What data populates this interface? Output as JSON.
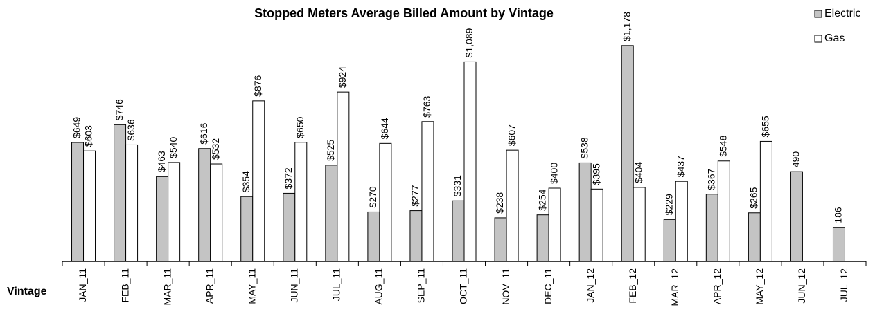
{
  "chart_data": {
    "type": "bar",
    "title": "Stopped Meters Average Billed Amount by Vintage",
    "x_label": "Vintage",
    "categories": [
      "JAN_11",
      "FEB_11",
      "MAR_11",
      "APR_11",
      "MAY_11",
      "JUN_11",
      "JUL_11",
      "AUG_11",
      "SEP_11",
      "OCT_11",
      "NOV_11",
      "DEC_11",
      "JAN_12",
      "FEB_12",
      "MAR_12",
      "APR_12",
      "MAY_12",
      "JUN_12",
      "JUL_12"
    ],
    "series": [
      {
        "name": "Electric",
        "color": "#c4c4c4",
        "values": [
          649,
          746,
          463,
          616,
          354,
          372,
          525,
          270,
          277,
          331,
          238,
          254,
          538,
          1178,
          229,
          367,
          265,
          490,
          186
        ],
        "value_labels": [
          "$649",
          "$746",
          "$463",
          "$616",
          "$354",
          "$372",
          "$525",
          "$270",
          "$277",
          "$331",
          "$238",
          "$254",
          "$538",
          "$1,178",
          "$229",
          "$367",
          "$265",
          "490",
          "186"
        ]
      },
      {
        "name": "Gas",
        "color": "#ffffff",
        "values": [
          603,
          636,
          540,
          532,
          876,
          650,
          924,
          644,
          763,
          1089,
          607,
          400,
          395,
          404,
          437,
          548,
          655,
          null,
          null
        ],
        "value_labels": [
          "$603",
          "$636",
          "$540",
          "$532",
          "$876",
          "$650",
          "$924",
          "$644",
          "$763",
          "$1,089",
          "$607",
          "$400",
          "$395",
          "$404",
          "$437",
          "$548",
          "$655",
          null,
          null
        ]
      }
    ],
    "ylim": [
      0,
      1200
    ],
    "legend": "top-right"
  }
}
